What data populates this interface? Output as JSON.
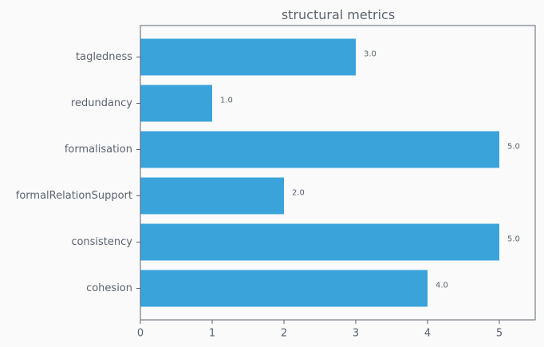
{
  "chart_data": {
    "type": "bar",
    "orientation": "horizontal",
    "title": "structural metrics",
    "xlabel": "",
    "ylabel": "",
    "categories": [
      "tagledness",
      "redundancy",
      "formalisation",
      "formalRelationSupport",
      "consistency",
      "cohesion"
    ],
    "values": [
      3.0,
      1.0,
      5.0,
      2.0,
      5.0,
      4.0
    ],
    "data_labels": [
      "3.0",
      "1.0",
      "5.0",
      "2.0",
      "5.0",
      "4.0"
    ],
    "xlim": [
      0,
      5.5
    ],
    "xticks": [
      0,
      1,
      2,
      3,
      4,
      5
    ],
    "xtick_labels": [
      "0",
      "1",
      "2",
      "3",
      "4",
      "5"
    ],
    "grid": false,
    "legend": "none",
    "colors": {
      "bar": "#3aa3da",
      "background": "#fafafa",
      "axis": "#5c6370",
      "text": "#5c6370"
    }
  }
}
